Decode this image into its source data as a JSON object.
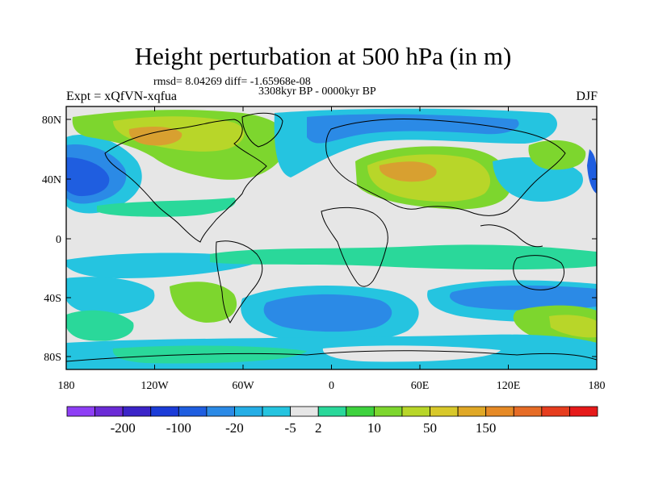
{
  "title": "Height perturbation at 500 hPa (in m)",
  "stats": "rmsd= 8.04269 diff= -1.65968e-08",
  "period": "3308kyr BP - 0000kyr BP",
  "experiment": "Expt = xQfVN-xqfua",
  "season": "DJF",
  "lat_ticks": [
    "80N",
    "40N",
    "0",
    "40S",
    "80S"
  ],
  "lon_ticks": [
    "180",
    "120W",
    "60W",
    "0",
    "60E",
    "120E",
    "180"
  ],
  "colorbar": {
    "colors": [
      "#8e3ff5",
      "#6b2bd6",
      "#3b24c8",
      "#1b3cd8",
      "#1f5ee0",
      "#2b8ae6",
      "#25aee6",
      "#25c4e0",
      "#e6e6e6",
      "#2ad89a",
      "#3ed23e",
      "#7dd62e",
      "#b8d629",
      "#d8c82a",
      "#e0a826",
      "#e68a26",
      "#e66c26",
      "#e63d1e",
      "#e61a1a"
    ],
    "labels": [
      "-200",
      "-100",
      "-20",
      "-5",
      "2",
      "10",
      "50",
      "150"
    ]
  },
  "map_colors": {
    "background": "#e6e6e6",
    "light_blue": "#25c4e0",
    "mid_blue": "#2b8ae6",
    "blue": "#1f5ee0",
    "green": "#2ad89a",
    "yellow_green": "#b8d629",
    "lime": "#7dd62e",
    "orange": "#d8a030",
    "coast": "#000000"
  }
}
